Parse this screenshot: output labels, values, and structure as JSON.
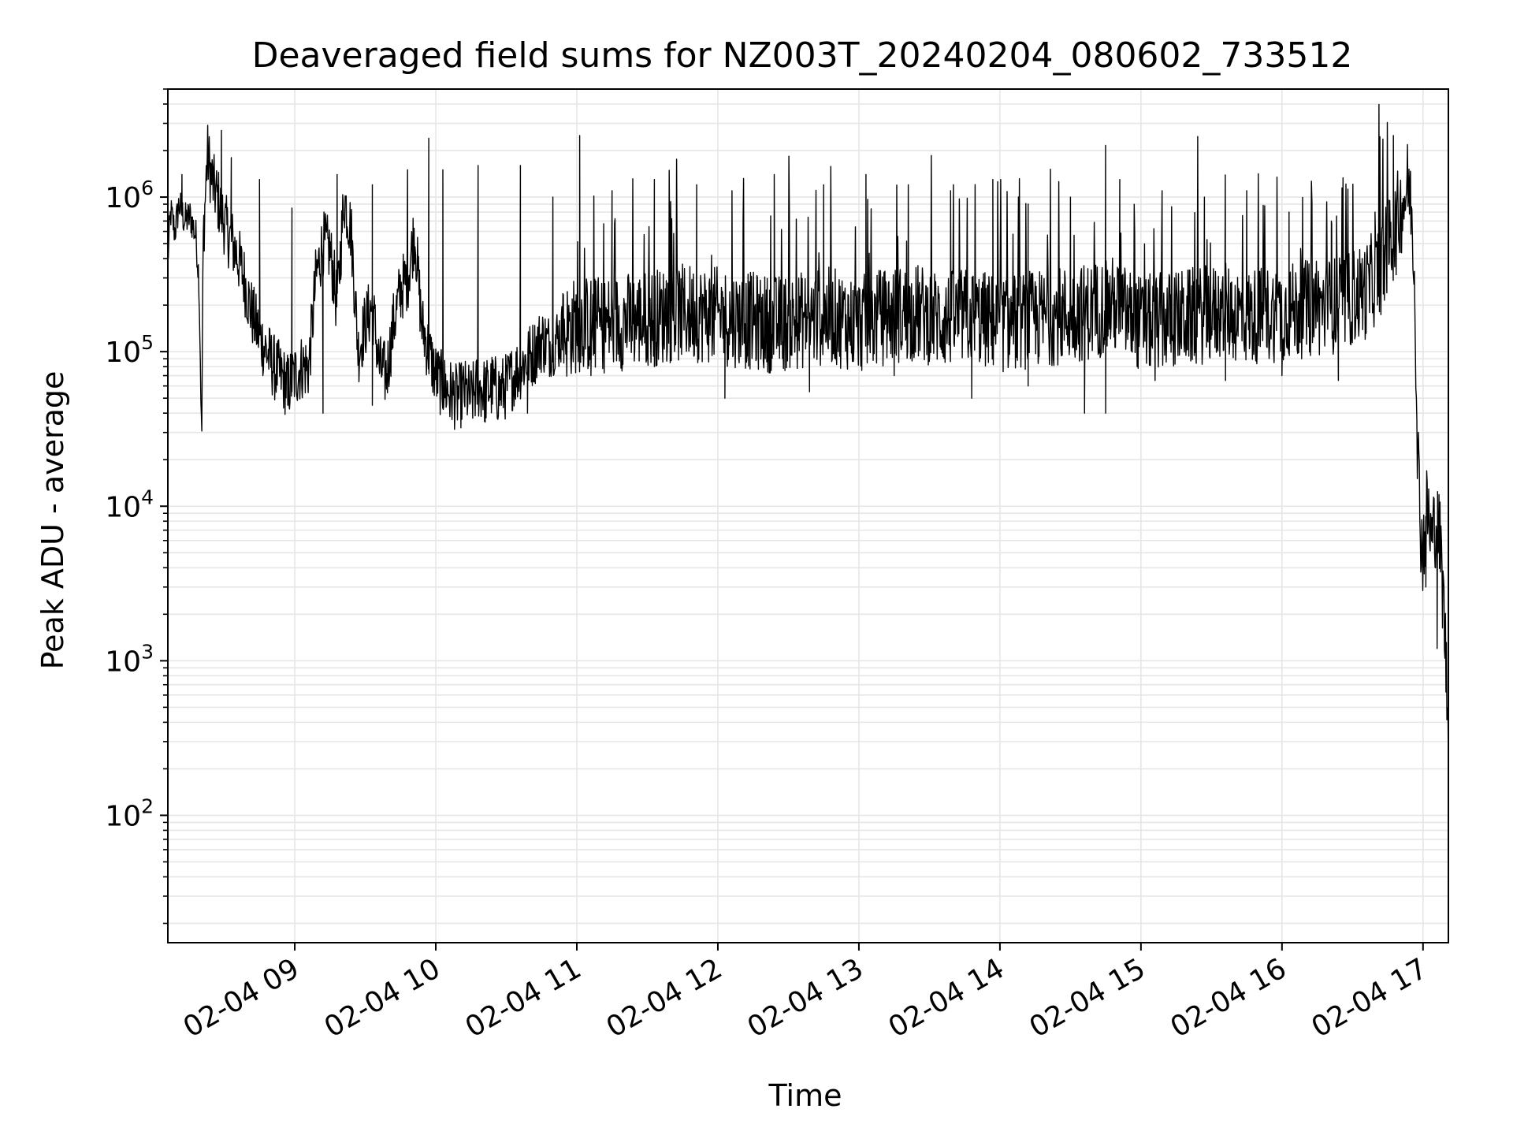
{
  "chart_data": {
    "type": "line",
    "title": "Deaveraged field sums for NZ003T_20240204_080602_733512",
    "xlabel": "Time",
    "ylabel": "Peak ADU - average",
    "x_unit": "hours since 2024-02-04 00:00",
    "xlim": [
      8.1,
      17.18
    ],
    "ylim": [
      15,
      5000000
    ],
    "yscale": "log",
    "grid": "on (major and minor)",
    "line_color": "#000000",
    "grid_color": "#e6e6e6",
    "x_ticks": [
      {
        "value": 9,
        "label": "02-04 09"
      },
      {
        "value": 10,
        "label": "02-04 10"
      },
      {
        "value": 11,
        "label": "02-04 11"
      },
      {
        "value": 12,
        "label": "02-04 12"
      },
      {
        "value": 13,
        "label": "02-04 13"
      },
      {
        "value": 14,
        "label": "02-04 14"
      },
      {
        "value": 15,
        "label": "02-04 15"
      },
      {
        "value": 16,
        "label": "02-04 16"
      },
      {
        "value": 17,
        "label": "02-04 17"
      }
    ],
    "y_ticks": [
      {
        "value": 100,
        "base": "10",
        "exp": "2"
      },
      {
        "value": 1000,
        "base": "10",
        "exp": "3"
      },
      {
        "value": 10000,
        "base": "10",
        "exp": "4"
      },
      {
        "value": 100000,
        "base": "10",
        "exp": "5"
      },
      {
        "value": 1000000,
        "base": "10",
        "exp": "6"
      }
    ],
    "series": [
      {
        "values": [
          [
            8.1,
            400000
          ],
          [
            8.12,
            800000
          ],
          [
            8.15,
            600000
          ],
          [
            8.18,
            900000
          ],
          [
            8.22,
            700000
          ],
          [
            8.26,
            750000
          ],
          [
            8.3,
            550000
          ],
          [
            8.32,
            300000
          ],
          [
            8.33,
            100000
          ],
          [
            8.34,
            23000
          ],
          [
            8.35,
            500000
          ],
          [
            8.38,
            1900000
          ],
          [
            8.42,
            1200000
          ],
          [
            8.45,
            1000000
          ],
          [
            8.48,
            800000
          ],
          [
            8.52,
            600000
          ],
          [
            8.56,
            500000
          ],
          [
            8.6,
            400000
          ],
          [
            8.64,
            300000
          ],
          [
            8.68,
            200000
          ],
          [
            8.72,
            150000
          ],
          [
            8.76,
            120000
          ],
          [
            8.8,
            100000
          ],
          [
            8.85,
            80000
          ],
          [
            8.9,
            70000
          ],
          [
            8.95,
            60000
          ],
          [
            9.0,
            70000
          ],
          [
            9.05,
            80000
          ],
          [
            9.1,
            80000
          ],
          [
            9.15,
            300000
          ],
          [
            9.2,
            500000
          ],
          [
            9.25,
            450000
          ],
          [
            9.3,
            200000
          ],
          [
            9.35,
            1000000
          ],
          [
            9.4,
            600000
          ],
          [
            9.45,
            100000
          ],
          [
            9.5,
            150000
          ],
          [
            9.55,
            200000
          ],
          [
            9.6,
            80000
          ],
          [
            9.65,
            70000
          ],
          [
            9.7,
            150000
          ],
          [
            9.75,
            250000
          ],
          [
            9.8,
            300000
          ],
          [
            9.85,
            600000
          ],
          [
            9.9,
            150000
          ],
          [
            9.95,
            100000
          ],
          [
            10.0,
            70000
          ],
          [
            10.05,
            60000
          ],
          [
            10.1,
            55000
          ],
          [
            10.15,
            50000
          ],
          [
            10.2,
            55000
          ],
          [
            10.25,
            50000
          ],
          [
            10.3,
            60000
          ],
          [
            10.35,
            55000
          ],
          [
            10.4,
            60000
          ],
          [
            10.45,
            55000
          ],
          [
            10.5,
            60000
          ],
          [
            10.55,
            70000
          ],
          [
            10.6,
            80000
          ],
          [
            10.65,
            90000
          ],
          [
            10.7,
            100000
          ],
          [
            10.75,
            120000
          ],
          [
            10.8,
            110000
          ],
          [
            10.9,
            130000
          ],
          [
            11.0,
            150000
          ],
          [
            11.2,
            150000
          ],
          [
            11.4,
            160000
          ],
          [
            11.6,
            170000
          ],
          [
            11.8,
            180000
          ],
          [
            12.0,
            170000
          ],
          [
            12.2,
            160000
          ],
          [
            12.4,
            150000
          ],
          [
            12.6,
            160000
          ],
          [
            12.8,
            170000
          ],
          [
            13.0,
            150000
          ],
          [
            13.2,
            170000
          ],
          [
            13.4,
            180000
          ],
          [
            13.6,
            160000
          ],
          [
            13.8,
            170000
          ],
          [
            14.0,
            150000
          ],
          [
            14.2,
            160000
          ],
          [
            14.4,
            170000
          ],
          [
            14.6,
            180000
          ],
          [
            14.8,
            200000
          ],
          [
            15.0,
            150000
          ],
          [
            15.2,
            160000
          ],
          [
            15.4,
            170000
          ],
          [
            15.6,
            180000
          ],
          [
            15.8,
            170000
          ],
          [
            16.0,
            180000
          ],
          [
            16.2,
            190000
          ],
          [
            16.4,
            200000
          ],
          [
            16.6,
            250000
          ],
          [
            16.7,
            350000
          ],
          [
            16.8,
            600000
          ],
          [
            16.85,
            900000
          ],
          [
            16.9,
            1200000
          ],
          [
            16.92,
            800000
          ],
          [
            16.94,
            300000
          ],
          [
            16.96,
            30000
          ],
          [
            16.98,
            8000
          ],
          [
            17.0,
            5000
          ],
          [
            17.03,
            10000
          ],
          [
            17.06,
            6000
          ],
          [
            17.09,
            8000
          ],
          [
            17.12,
            6000
          ],
          [
            17.15,
            2000
          ],
          [
            17.18,
            350
          ]
        ],
        "spikes": [
          [
            8.2,
            1400000
          ],
          [
            8.48,
            2700000
          ],
          [
            8.55,
            1800000
          ],
          [
            8.75,
            1300000
          ],
          [
            8.98,
            850000
          ],
          [
            9.3,
            1400000
          ],
          [
            9.55,
            1200000
          ],
          [
            9.8,
            1500000
          ],
          [
            9.95,
            2400000
          ],
          [
            10.05,
            1500000
          ],
          [
            10.3,
            1600000
          ],
          [
            10.6,
            1600000
          ],
          [
            10.83,
            1000000
          ],
          [
            11.02,
            2500000
          ],
          [
            11.25,
            1100000
          ],
          [
            11.55,
            1300000
          ],
          [
            11.85,
            1200000
          ],
          [
            12.1,
            1100000
          ],
          [
            12.4,
            1400000
          ],
          [
            12.75,
            1200000
          ],
          [
            13.05,
            1400000
          ],
          [
            13.35,
            1200000
          ],
          [
            13.65,
            1100000
          ],
          [
            13.95,
            1300000
          ],
          [
            14.2,
            900000
          ],
          [
            14.5,
            1000000
          ],
          [
            14.85,
            1300000
          ],
          [
            15.15,
            1100000
          ],
          [
            15.45,
            1000000
          ],
          [
            15.75,
            1100000
          ],
          [
            16.05,
            800000
          ],
          [
            16.35,
            700000
          ],
          [
            16.66,
            800000
          ],
          [
            16.79,
            2500000
          ]
        ],
        "dips": [
          [
            8.95,
            45000
          ],
          [
            9.2,
            40000
          ],
          [
            9.55,
            45000
          ],
          [
            10.1,
            38000
          ],
          [
            10.35,
            35000
          ],
          [
            10.65,
            40000
          ],
          [
            11.1,
            70000
          ],
          [
            11.55,
            80000
          ],
          [
            12.05,
            50000
          ],
          [
            12.65,
            55000
          ],
          [
            13.25,
            70000
          ],
          [
            13.8,
            50000
          ],
          [
            14.2,
            60000
          ],
          [
            14.6,
            40000
          ],
          [
            14.75,
            40000
          ],
          [
            15.1,
            65000
          ],
          [
            15.6,
            65000
          ],
          [
            16.0,
            70000
          ],
          [
            16.4,
            65000
          ],
          [
            17.02,
            3000
          ],
          [
            17.1,
            1200
          ]
        ]
      }
    ]
  }
}
